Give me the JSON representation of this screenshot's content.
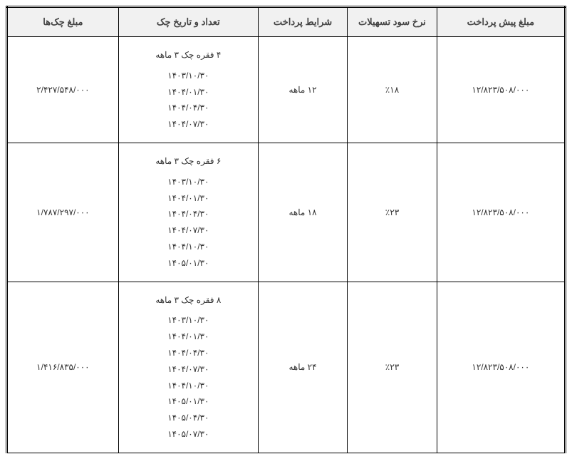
{
  "table": {
    "columns": [
      {
        "key": "prepay",
        "label": "مبلغ پیش پرداخت"
      },
      {
        "key": "rate",
        "label": "نرخ سود تسهیلات"
      },
      {
        "key": "term",
        "label": "شرایط پرداخت"
      },
      {
        "key": "dates",
        "label": "تعداد و تاریخ چک"
      },
      {
        "key": "amount",
        "label": "مبلغ چک‌ها"
      }
    ],
    "rows": [
      {
        "prepay": "۱۲/۸۲۳/۵۰۸/۰۰۰",
        "rate": "٪۱۸",
        "term": "۱۲ ماهه",
        "dates_title": "۴ فقره چک ۳ ماهه",
        "dates": [
          "۱۴۰۳/۱۰/۳۰",
          "۱۴۰۴/۰۱/۳۰",
          "۱۴۰۴/۰۴/۳۰",
          "۱۴۰۴/۰۷/۳۰"
        ],
        "amount": "۲/۴۲۷/۵۴۸/۰۰۰"
      },
      {
        "prepay": "۱۲/۸۲۳/۵۰۸/۰۰۰",
        "rate": "٪۲۳",
        "term": "۱۸ ماهه",
        "dates_title": "۶ فقره چک ۳ ماهه",
        "dates": [
          "۱۴۰۳/۱۰/۳۰",
          "۱۴۰۴/۰۱/۳۰",
          "۱۴۰۴/۰۴/۳۰",
          "۱۴۰۴/۰۷/۳۰",
          "۱۴۰۴/۱۰/۳۰",
          "۱۴۰۵/۰۱/۳۰"
        ],
        "amount": "۱/۷۸۷/۲۹۷/۰۰۰"
      },
      {
        "prepay": "۱۲/۸۲۳/۵۰۸/۰۰۰",
        "rate": "٪۲۳",
        "term": "۲۴ ماهه",
        "dates_title": "۸ فقره چک ۳ ماهه",
        "dates": [
          "۱۴۰۳/۱۰/۳۰",
          "۱۴۰۴/۰۱/۳۰",
          "۱۴۰۴/۰۴/۳۰",
          "۱۴۰۴/۰۷/۳۰",
          "۱۴۰۴/۱۰/۳۰",
          "۱۴۰۵/۰۱/۳۰",
          "۱۴۰۵/۰۴/۳۰",
          "۱۴۰۵/۰۷/۳۰"
        ],
        "amount": "۱/۴۱۶/۸۳۵/۰۰۰"
      }
    ],
    "style": {
      "header_bg": "#f1f1f1",
      "border_color": "#000000",
      "text_color": "#333333",
      "font_size_body": 12,
      "font_size_header": 13
    }
  }
}
